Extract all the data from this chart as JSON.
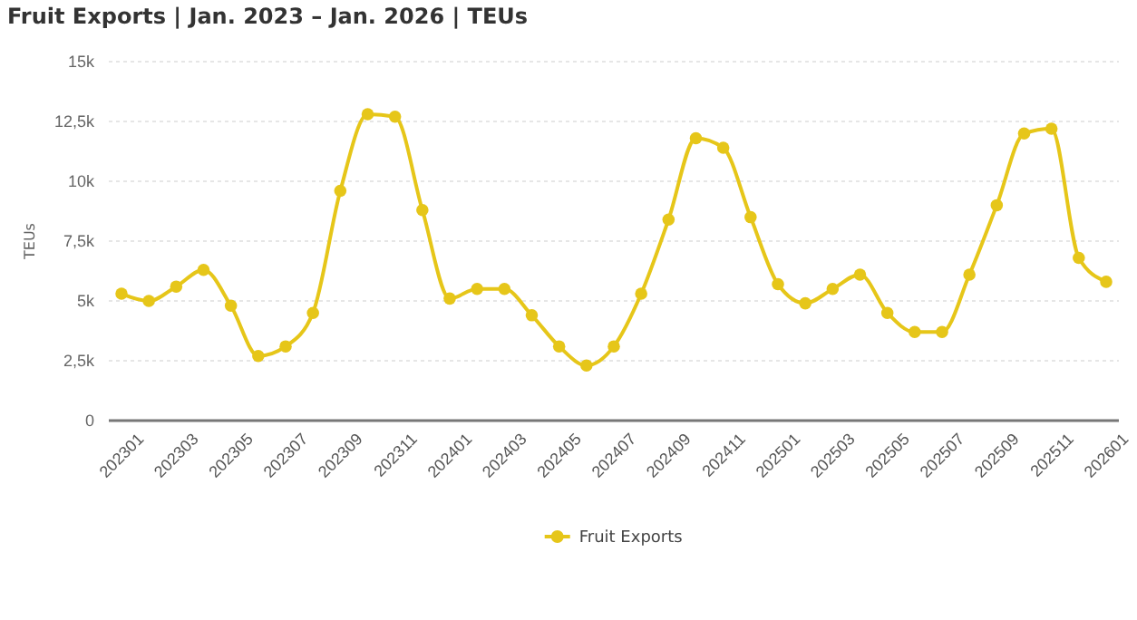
{
  "chart_data": {
    "type": "line",
    "title": "Fruit Exports | Jan. 2023 – Jan. 2026 | TEUs",
    "ylabel": "TEUs",
    "categories": [
      "202301",
      null,
      "202303",
      null,
      "202305",
      null,
      "202307",
      null,
      "202309",
      null,
      "202311",
      null,
      "202401",
      null,
      "202403",
      null,
      "202405",
      null,
      "202407",
      null,
      "202409",
      null,
      "202411",
      null,
      "202501",
      null,
      "202503",
      null,
      "202505",
      null,
      "202507",
      null,
      "202509",
      null,
      "202511",
      null,
      "202601"
    ],
    "series": [
      {
        "name": "Fruit Exports",
        "color": "#e6c619",
        "values": [
          5300,
          5000,
          5600,
          6300,
          4800,
          2700,
          3100,
          4500,
          9600,
          12800,
          12700,
          8800,
          5100,
          5500,
          5500,
          4400,
          3100,
          2300,
          3100,
          5300,
          8400,
          11800,
          11400,
          8500,
          5700,
          4900,
          5500,
          6100,
          4500,
          3700,
          3700,
          6100,
          9000,
          12000,
          12200,
          6800,
          5800
        ]
      }
    ],
    "ylim": [
      0,
      15000
    ],
    "yticks": [
      0,
      {
        "value": 2500,
        "label": "2,5k"
      },
      {
        "value": 5000,
        "label": "5k"
      },
      {
        "value": 7500,
        "label": "7,5k"
      },
      {
        "value": 10000,
        "label": "10k"
      },
      {
        "value": 12500,
        "label": "12,5k"
      },
      {
        "value": 15000,
        "label": "15k"
      }
    ],
    "grid": "y",
    "legend": "bottom",
    "marker": "circle",
    "line_style": "solid"
  }
}
